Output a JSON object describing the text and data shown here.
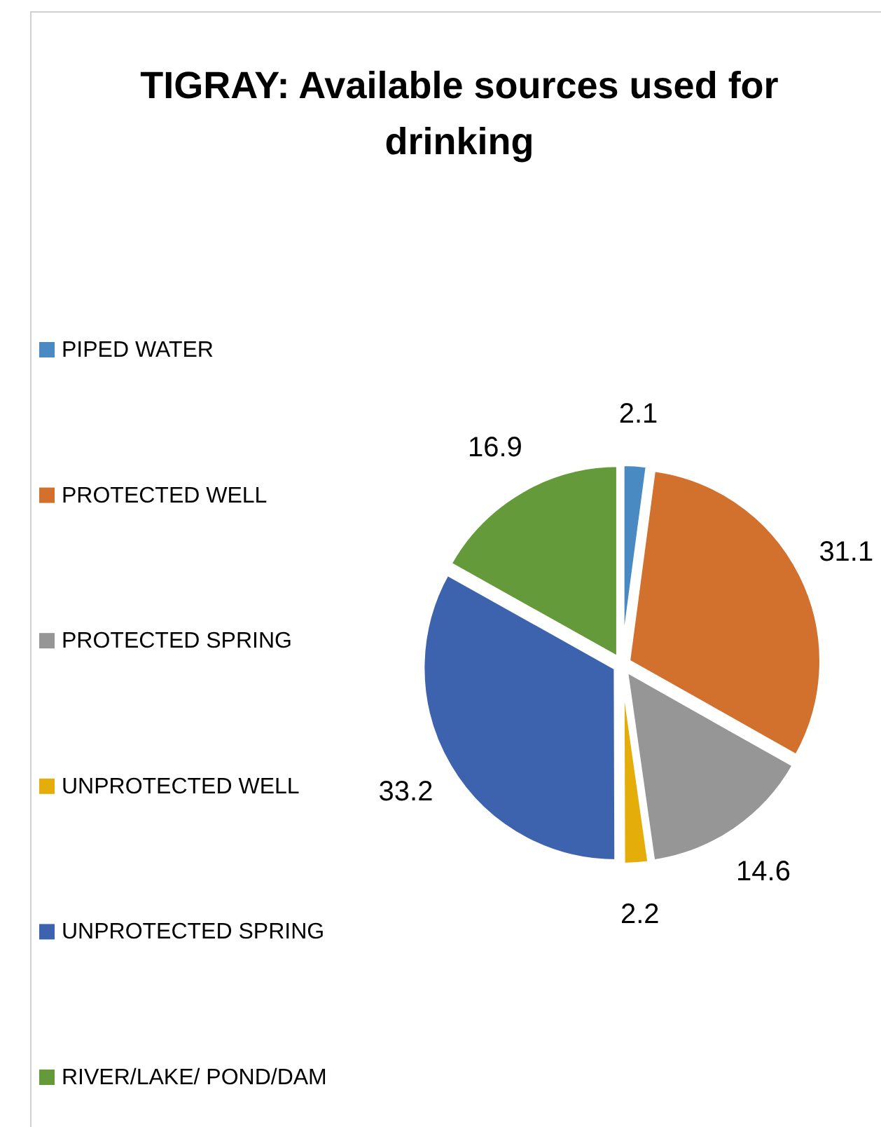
{
  "chart_data": {
    "type": "pie",
    "title": "TIGRAY: Available sources used for drinking",
    "categories": [
      "PIPED WATER",
      "PROTECTED WELL",
      "PROTECTED SPRING",
      "UNPROTECTED WELL",
      "UNPROTECTED SPRING",
      "RIVER/LAKE/ POND/DAM"
    ],
    "values": [
      2.1,
      31.1,
      14.6,
      2.2,
      33.2,
      16.9
    ],
    "colors": [
      "#4a8ac3",
      "#d2702d",
      "#969696",
      "#e5ad0a",
      "#3e63ae",
      "#659a3b"
    ],
    "data_labels": true,
    "legend": "left"
  }
}
